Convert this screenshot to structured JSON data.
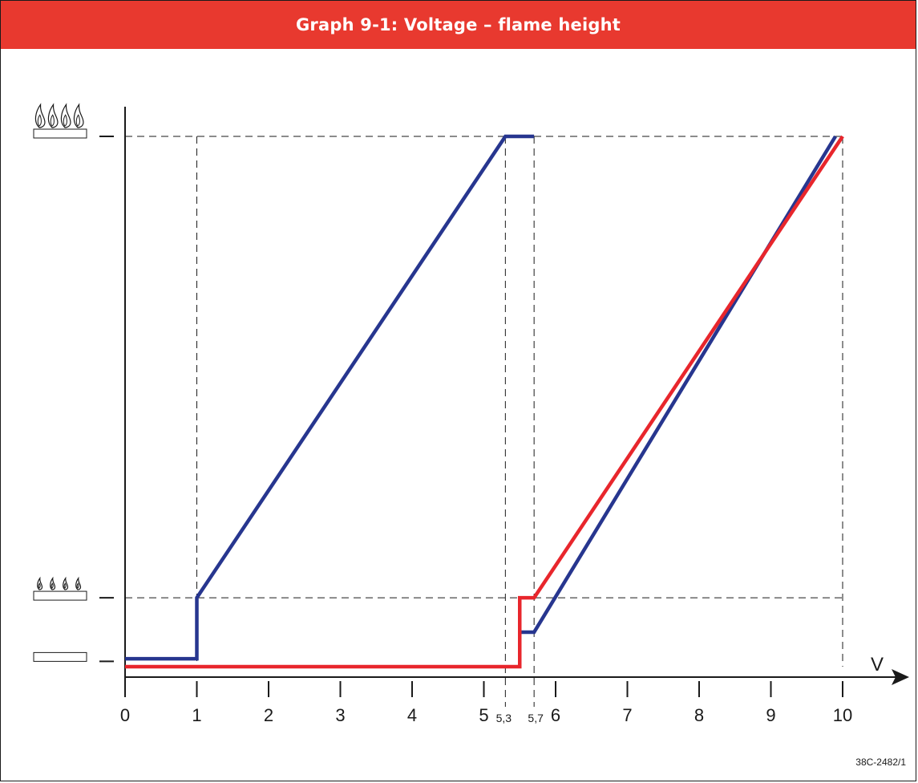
{
  "title": "Graph 9-1: Voltage – flame height",
  "figure_code": "38C-2482/1",
  "colors": {
    "header": "#e8392f",
    "blue_series": "#27368f",
    "red_series": "#e8262c"
  },
  "icons": {
    "high_flame": "burner-four-large-flames-icon",
    "low_flame": "burner-four-small-flames-icon",
    "off": "burner-no-flame-icon"
  },
  "chart_data": {
    "type": "line",
    "title": "Graph 9-1: Voltage – flame height",
    "xlabel": "V",
    "ylabel": "",
    "x_ticks": [
      0,
      1,
      2,
      3,
      4,
      5,
      6,
      7,
      8,
      9,
      10
    ],
    "x_tick_labels": [
      "0",
      "1",
      "2",
      "3",
      "4",
      "5",
      "6",
      "7",
      "8",
      "9",
      "10"
    ],
    "x_annotations": [
      {
        "x": 5.3,
        "label": "5,3"
      },
      {
        "x": 5.7,
        "label": "5,7"
      }
    ],
    "y_levels": [
      "off",
      "low_flame",
      "high_flame"
    ],
    "xlim": [
      0,
      10
    ],
    "ylim": [
      -0.02,
      1
    ],
    "grid": false,
    "reference_lines": {
      "vertical": [
        1,
        5.3,
        5.7,
        10
      ],
      "horizontal": [
        0.13,
        1
      ]
    },
    "series": [
      {
        "color": "#27368f",
        "points": [
          [
            0,
            0.015
          ],
          [
            1,
            0.015
          ],
          [
            1,
            0.13
          ],
          [
            5.3,
            1
          ],
          [
            5.7,
            1
          ]
        ]
      },
      {
        "color": "#27368f",
        "points": [
          [
            5.5,
            0.065
          ],
          [
            5.7,
            0.065
          ],
          [
            9.9,
            1
          ]
        ]
      },
      {
        "color": "#e8262c",
        "points": [
          [
            0,
            0
          ],
          [
            5.5,
            0
          ],
          [
            5.5,
            0.13
          ],
          [
            5.7,
            0.13
          ],
          [
            10,
            1
          ]
        ]
      }
    ]
  }
}
